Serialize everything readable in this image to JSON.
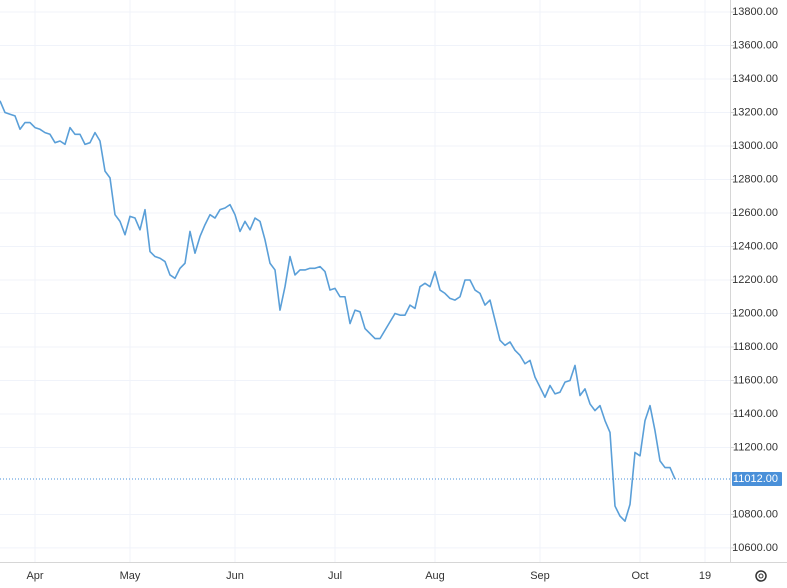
{
  "chart_data": {
    "type": "line",
    "categories": [
      null,
      null,
      null,
      null,
      null,
      null,
      null,
      "Apr",
      null,
      null,
      null,
      null,
      null,
      null,
      null,
      null,
      null,
      null,
      null,
      null,
      null,
      null,
      null,
      null,
      null,
      null,
      "May",
      null,
      null,
      null,
      null,
      null,
      null,
      null,
      null,
      null,
      null,
      null,
      null,
      null,
      null,
      null,
      null,
      null,
      null,
      null,
      null,
      "Jun",
      null,
      null,
      null,
      null,
      null,
      null,
      null,
      null,
      null,
      null,
      null,
      null,
      null,
      null,
      null,
      null,
      null,
      null,
      null,
      "Jul",
      null,
      null,
      null,
      null,
      null,
      null,
      null,
      null,
      null,
      null,
      null,
      null,
      null,
      null,
      null,
      null,
      null,
      null,
      null,
      "Aug",
      null,
      null,
      null,
      null,
      null,
      null,
      null,
      null,
      null,
      null,
      null,
      null,
      null,
      null,
      null,
      null,
      null,
      null,
      null,
      null,
      "Sep",
      null,
      null,
      null,
      null,
      null,
      null,
      null,
      null,
      null,
      null,
      null,
      null,
      null,
      null,
      null,
      null,
      null,
      null,
      null,
      "Oct",
      null,
      null,
      null,
      null,
      null,
      null,
      null,
      null,
      null,
      null,
      null,
      null,
      "19",
      null,
      null,
      null,
      null
    ],
    "series": [
      {
        "color": "#5a9fd8",
        "values": [
          13270,
          13200,
          13190,
          13180,
          13100,
          13140,
          13140,
          13110,
          13100,
          13080,
          13070,
          13020,
          13030,
          13010,
          13110,
          13070,
          13070,
          13010,
          13020,
          13080,
          13030,
          12850,
          12810,
          12590,
          12550,
          12470,
          12580,
          12570,
          12500,
          12620,
          12370,
          12340,
          12330,
          12310,
          12230,
          12210,
          12270,
          12300,
          12490,
          12360,
          12460,
          12530,
          12590,
          12570,
          12620,
          12630,
          12650,
          12590,
          12490,
          12550,
          12500,
          12570,
          12550,
          12440,
          12300,
          12260,
          12020,
          12160,
          12340,
          12230,
          12260,
          12260,
          12270,
          12270,
          12280,
          12250,
          12140,
          12150,
          12100,
          12100,
          11940,
          12020,
          12010,
          11910,
          11880,
          11850,
          11850,
          11900,
          11950,
          12000,
          11990,
          11990,
          12050,
          12030,
          12160,
          12180,
          12160,
          12250,
          12140,
          12120,
          12090,
          12080,
          12100,
          12200,
          12200,
          12140,
          12120,
          12050,
          12080,
          11960,
          11840,
          11810,
          11830,
          11780,
          11750,
          11700,
          11720,
          11620,
          11560,
          11500,
          11570,
          11520,
          11530,
          11590,
          11600,
          11690,
          11510,
          11550,
          11460,
          11420,
          11450,
          11360,
          11290,
          10850,
          10790,
          10760,
          10860,
          11170,
          11150,
          11360,
          11450,
          11300,
          11120,
          11080,
          11080,
          11012,
          null,
          null,
          null,
          null,
          null,
          null,
          null,
          null,
          null,
          null
        ]
      }
    ],
    "ylim": [
      10516,
      13872
    ],
    "yticks": [
      {
        "value": 10600,
        "label": "10600.00"
      },
      {
        "value": 10800,
        "label": "10800.00"
      },
      {
        "value": 11200,
        "label": "11200.00"
      },
      {
        "value": 11400,
        "label": "11400.00"
      },
      {
        "value": 11600,
        "label": "11600.00"
      },
      {
        "value": 11800,
        "label": "11800.00"
      },
      {
        "value": 12000,
        "label": "12000.00"
      },
      {
        "value": 12200,
        "label": "12200.00"
      },
      {
        "value": 12400,
        "label": "12400.00"
      },
      {
        "value": 12600,
        "label": "12600.00"
      },
      {
        "value": 12800,
        "label": "12800.00"
      },
      {
        "value": 13000,
        "label": "13000.00"
      },
      {
        "value": 13200,
        "label": "13200.00"
      },
      {
        "value": 13400,
        "label": "13400.00"
      },
      {
        "value": 13600,
        "label": "13600.00"
      },
      {
        "value": 13800,
        "label": "13800.00"
      }
    ],
    "last_price": {
      "value": 11012,
      "label": "11012.00",
      "color": "#4a90d9"
    },
    "grid": true
  }
}
